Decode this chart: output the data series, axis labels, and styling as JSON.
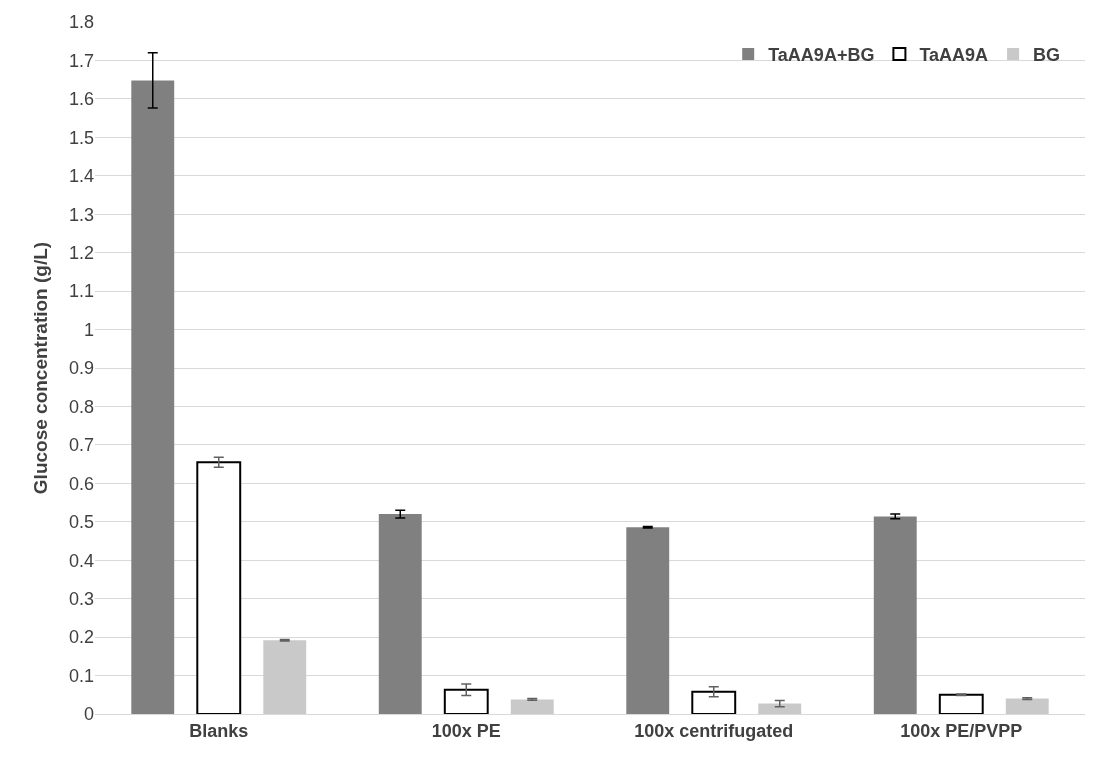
{
  "chart_data": {
    "type": "bar",
    "ylabel": "Glucose concentration (g/L)",
    "categories": [
      "Blanks",
      "100x PE",
      "100x centrifugated",
      "100x PE/PVPP"
    ],
    "series": [
      {
        "name": "TaAA9A+BG",
        "color": "#808080",
        "values": [
          1.648,
          0.52,
          0.486,
          0.514
        ],
        "errors": [
          0.072,
          0.01,
          0.002,
          0.006
        ]
      },
      {
        "name": "TaAA9A",
        "color": "#ffffff",
        "values": [
          0.655,
          0.063,
          0.058,
          0.05
        ],
        "errors": [
          0.013,
          0.015,
          0.013,
          0.002
        ]
      },
      {
        "name": "BG",
        "color": "#c9c9c9",
        "values": [
          0.192,
          0.038,
          0.027,
          0.04
        ],
        "errors": [
          0.002,
          0.002,
          0.008,
          0.002
        ]
      }
    ],
    "ylim": [
      0,
      1.8
    ],
    "yticks": [
      0,
      0.1,
      0.2,
      0.3,
      0.4,
      0.5,
      0.6,
      0.7,
      0.8,
      0.9,
      1,
      1.1,
      1.2,
      1.3,
      1.4,
      1.5,
      1.6,
      1.7,
      1.8
    ],
    "grid": "y",
    "legend": "top right"
  }
}
